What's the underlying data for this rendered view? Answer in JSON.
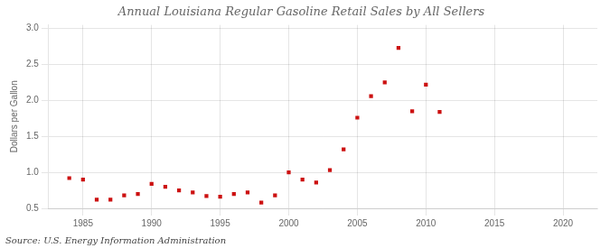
{
  "chart_data": {
    "type": "scatter",
    "title": "Annual Louisiana Regular Gasoline Retail Sales by All Sellers",
    "ylabel": "Dollars per Gallon",
    "source": "Source: U.S. Energy Information Administration",
    "x": [
      1984,
      1985,
      1986,
      1987,
      1988,
      1989,
      1990,
      1991,
      1992,
      1993,
      1994,
      1995,
      1996,
      1997,
      1998,
      1999,
      2000,
      2001,
      2002,
      2003,
      2004,
      2005,
      2006,
      2007,
      2008,
      2009,
      2010,
      2011
    ],
    "values": [
      0.92,
      0.9,
      0.62,
      0.62,
      0.68,
      0.7,
      0.84,
      0.8,
      0.75,
      0.72,
      0.67,
      0.66,
      0.7,
      0.72,
      0.58,
      0.68,
      1.0,
      0.9,
      0.86,
      1.03,
      1.32,
      1.76,
      2.06,
      2.25,
      2.73,
      1.85,
      2.22,
      1.84
    ],
    "color": "#cc1111",
    "marker": "square",
    "xlim": [
      1982.5,
      2022.5
    ],
    "ylim": [
      0.5,
      3.05
    ],
    "xticks": [
      1985,
      1990,
      1995,
      2000,
      2005,
      2010,
      2015,
      2020
    ],
    "yticks": [
      0.5,
      {
        "value": 1.0,
        "label": "1.0"
      },
      1.5,
      {
        "value": 2.0,
        "label": "2.0"
      },
      2.5,
      {
        "value": 3.0,
        "label": "3.0"
      }
    ],
    "grid": true
  }
}
